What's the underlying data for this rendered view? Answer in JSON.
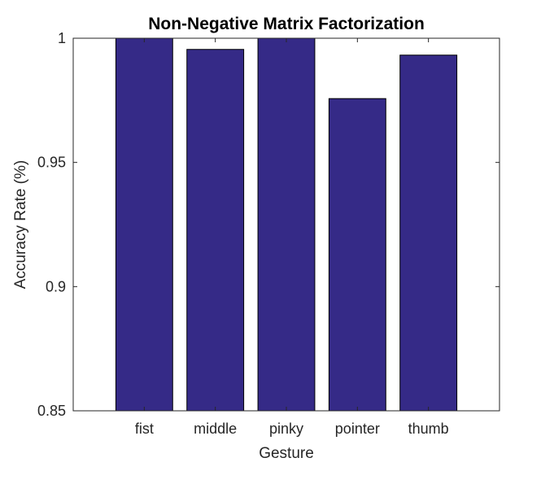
{
  "chart_data": {
    "type": "bar",
    "title": "Non-Negative Matrix Factorization",
    "xlabel": "Gesture",
    "ylabel": "Accuracy Rate (%)",
    "categories": [
      "fist",
      "middle",
      "pinky",
      "pointer",
      "thumb"
    ],
    "values": [
      1.0,
      0.9955,
      1.0,
      0.9757,
      0.9932
    ],
    "ylim": [
      0.85,
      1.0
    ],
    "yticks": [
      0.85,
      0.9,
      0.95,
      1.0
    ],
    "ytick_labels": [
      "0.85",
      "0.9",
      "0.95",
      "1"
    ],
    "grid": false,
    "legend": false,
    "colors": {
      "bar_fill": "#352a87",
      "bar_edge": "#000000",
      "axis": "#262626",
      "background": "#ffffff"
    }
  }
}
